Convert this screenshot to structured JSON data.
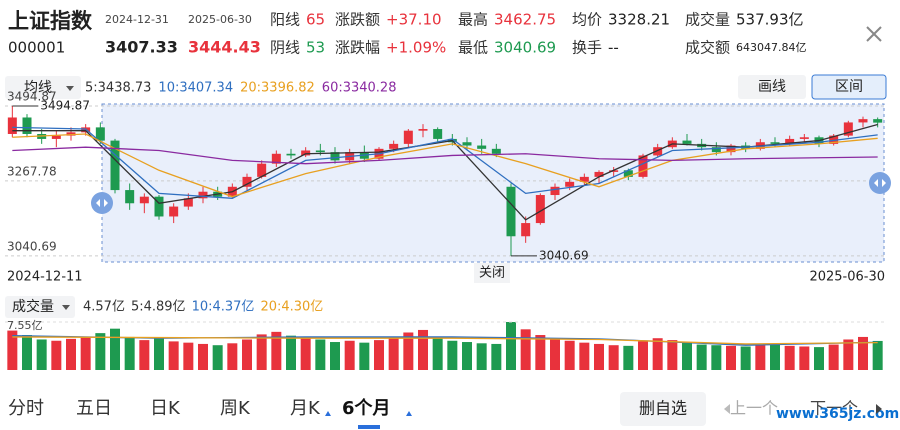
{
  "header": {
    "name": "上证指数",
    "code": "000001",
    "start_date": "2024-12-31",
    "start_price": "3407.33",
    "end_date": "2025-06-30",
    "end_price": "3444.43",
    "stats": [
      [
        {
          "label": "阳线",
          "value": "65",
          "color": "#e8323c"
        },
        {
          "label": "阴线",
          "value": "53",
          "color": "#1e9a50"
        }
      ],
      [
        {
          "label": "涨跌额",
          "value": "+37.10",
          "color": "#e8323c"
        },
        {
          "label": "涨跌幅",
          "value": "+1.09%",
          "color": "#e8323c"
        }
      ],
      [
        {
          "label": "最高",
          "value": "3462.75",
          "color": "#e8323c"
        },
        {
          "label": "最低",
          "value": "3040.69",
          "color": "#1e9a50"
        }
      ],
      [
        {
          "label": "均价",
          "value": "3328.21",
          "color": "#222222"
        },
        {
          "label": "换手",
          "value": "--",
          "color": "#222222"
        }
      ],
      [
        {
          "label": "成交量",
          "value": "537.93亿",
          "color": "#222222"
        },
        {
          "label": "成交额",
          "value": "643047.84亿",
          "color": "#222222"
        }
      ]
    ]
  },
  "toolbar": {
    "ma_button": "均线",
    "ma_legend": [
      {
        "text": "5:3438.73",
        "color": "#333333"
      },
      {
        "text": "10:3407.34",
        "color": "#2f6fc0"
      },
      {
        "text": "20:3396.82",
        "color": "#e8a020"
      },
      {
        "text": "60:3340.28",
        "color": "#8a2aa0"
      }
    ],
    "draw_button": "画线",
    "range_button": "区间"
  },
  "chart_data": [
    {
      "type": "candlestick",
      "up_color": "#e8323c",
      "down_color": "#1e9a50",
      "x_start_label": "2024-12-11",
      "x_end_label": "2025-06-30",
      "close_button": "关闭",
      "ylim": [
        3022,
        3513
      ],
      "yticks": [
        3494.87,
        3267.78,
        3040.69
      ],
      "annotations": [
        {
          "label": "3494.87",
          "value": 3494.87,
          "x": 0
        },
        {
          "label": "3040.69",
          "value": 3040.69,
          "x": 34
        }
      ],
      "ohlc": [
        [
          3410,
          3495,
          3400,
          3460
        ],
        [
          3460,
          3470,
          3400,
          3410
        ],
        [
          3410,
          3425,
          3380,
          3395
        ],
        [
          3395,
          3420,
          3370,
          3405
        ],
        [
          3405,
          3430,
          3390,
          3415
        ],
        [
          3415,
          3440,
          3405,
          3430
        ],
        [
          3430,
          3445,
          3380,
          3390
        ],
        [
          3390,
          3395,
          3230,
          3240
        ],
        [
          3240,
          3260,
          3180,
          3200
        ],
        [
          3200,
          3230,
          3170,
          3220
        ],
        [
          3220,
          3225,
          3150,
          3160
        ],
        [
          3160,
          3200,
          3140,
          3190
        ],
        [
          3190,
          3230,
          3180,
          3215
        ],
        [
          3215,
          3250,
          3200,
          3235
        ],
        [
          3235,
          3250,
          3210,
          3220
        ],
        [
          3220,
          3260,
          3215,
          3250
        ],
        [
          3250,
          3290,
          3240,
          3280
        ],
        [
          3280,
          3330,
          3275,
          3320
        ],
        [
          3320,
          3360,
          3310,
          3350
        ],
        [
          3350,
          3365,
          3335,
          3345
        ],
        [
          3345,
          3370,
          3340,
          3360
        ],
        [
          3360,
          3380,
          3345,
          3355
        ],
        [
          3355,
          3370,
          3320,
          3330
        ],
        [
          3330,
          3365,
          3320,
          3355
        ],
        [
          3355,
          3375,
          3325,
          3335
        ],
        [
          3335,
          3370,
          3330,
          3365
        ],
        [
          3365,
          3390,
          3355,
          3380
        ],
        [
          3380,
          3425,
          3370,
          3420
        ],
        [
          3420,
          3440,
          3400,
          3425
        ],
        [
          3425,
          3430,
          3385,
          3395
        ],
        [
          3395,
          3410,
          3375,
          3385
        ],
        [
          3385,
          3400,
          3360,
          3375
        ],
        [
          3375,
          3395,
          3350,
          3365
        ],
        [
          3365,
          3380,
          3340,
          3350
        ],
        [
          3250,
          3260,
          3040.69,
          3100
        ],
        [
          3100,
          3160,
          3080,
          3140
        ],
        [
          3140,
          3230,
          3135,
          3225
        ],
        [
          3225,
          3260,
          3210,
          3250
        ],
        [
          3250,
          3275,
          3240,
          3265
        ],
        [
          3265,
          3290,
          3255,
          3280
        ],
        [
          3280,
          3300,
          3260,
          3295
        ],
        [
          3295,
          3310,
          3280,
          3300
        ],
        [
          3300,
          3305,
          3270,
          3280
        ],
        [
          3280,
          3350,
          3275,
          3345
        ],
        [
          3345,
          3380,
          3340,
          3370
        ],
        [
          3370,
          3400,
          3365,
          3390
        ],
        [
          3390,
          3410,
          3375,
          3380
        ],
        [
          3380,
          3395,
          3360,
          3370
        ],
        [
          3370,
          3385,
          3345,
          3355
        ],
        [
          3355,
          3380,
          3345,
          3375
        ],
        [
          3375,
          3385,
          3355,
          3365
        ],
        [
          3365,
          3395,
          3360,
          3385
        ],
        [
          3385,
          3400,
          3370,
          3380
        ],
        [
          3380,
          3405,
          3375,
          3395
        ],
        [
          3395,
          3410,
          3385,
          3400
        ],
        [
          3400,
          3405,
          3370,
          3380
        ],
        [
          3380,
          3410,
          3375,
          3405
        ],
        [
          3405,
          3450,
          3400,
          3445
        ],
        [
          3445,
          3462.75,
          3430,
          3455
        ],
        [
          3455,
          3460,
          3430,
          3444.43
        ]
      ],
      "lines": [
        {
          "color": "#333333",
          "x": [
            0,
            5,
            10,
            15,
            20,
            25,
            30,
            35,
            40,
            45,
            50,
            55,
            59
          ],
          "values": [
            3420,
            3420,
            3200,
            3235,
            3350,
            3355,
            3390,
            3150,
            3280,
            3380,
            3370,
            3390,
            3438.73
          ]
        },
        {
          "color": "#2f6fc0",
          "x": [
            0,
            5,
            10,
            15,
            20,
            25,
            30,
            35,
            40,
            45,
            50,
            55,
            59
          ],
          "values": [
            3430,
            3425,
            3230,
            3215,
            3330,
            3350,
            3395,
            3230,
            3260,
            3360,
            3370,
            3385,
            3407.34
          ]
        },
        {
          "color": "#e8a020",
          "x": [
            0,
            5,
            10,
            15,
            20,
            25,
            30,
            35,
            40,
            45,
            50,
            55,
            59
          ],
          "values": [
            3400,
            3410,
            3300,
            3220,
            3290,
            3340,
            3380,
            3320,
            3250,
            3330,
            3365,
            3380,
            3396.82
          ]
        },
        {
          "color": "#8a2aa0",
          "x": [
            0,
            5,
            10,
            15,
            20,
            25,
            30,
            35,
            40,
            45,
            50,
            55,
            59
          ],
          "values": [
            3360,
            3370,
            3360,
            3330,
            3320,
            3330,
            3345,
            3350,
            3335,
            3330,
            3335,
            3338,
            3340.28
          ]
        }
      ]
    },
    {
      "type": "bar",
      "button": "成交量",
      "legend": [
        {
          "text": "4.57亿",
          "color": "#333333"
        },
        {
          "text": "5:4.89亿",
          "color": "#333333"
        },
        {
          "text": "10:4.37亿",
          "color": "#2f6fc0"
        },
        {
          "text": "20:4.30亿",
          "color": "#e8a020"
        }
      ],
      "ylim": [
        0,
        7.55
      ],
      "yticks": [
        {
          "value": 7.55,
          "label": "7.55亿"
        }
      ],
      "values": [
        6.2,
        5.5,
        4.8,
        4.6,
        4.9,
        5.1,
        5.8,
        6.5,
        5.2,
        4.7,
        5.0,
        4.5,
        4.3,
        4.1,
        3.9,
        4.2,
        4.8,
        5.6,
        6.0,
        5.4,
        5.0,
        4.8,
        4.4,
        4.6,
        4.3,
        4.7,
        5.2,
        5.9,
        6.3,
        5.1,
        4.6,
        4.4,
        4.2,
        4.1,
        7.55,
        6.4,
        5.5,
        5.0,
        4.6,
        4.3,
        4.1,
        3.9,
        3.8,
        4.5,
        5.0,
        4.7,
        4.3,
        4.0,
        3.9,
        3.8,
        3.7,
        3.9,
        4.0,
        3.8,
        3.7,
        3.6,
        4.0,
        4.8,
        5.2,
        4.57
      ],
      "lines": [
        {
          "color": "#2f6fc0",
          "x": [
            0,
            10,
            20,
            30,
            40,
            50,
            59
          ],
          "values": [
            5.4,
            5.0,
            5.2,
            5.2,
            4.9,
            3.9,
            4.37
          ]
        },
        {
          "color": "#e8a020",
          "x": [
            0,
            10,
            20,
            30,
            40,
            50,
            59
          ],
          "values": [
            5.2,
            5.1,
            5.0,
            5.0,
            4.8,
            4.1,
            4.3
          ]
        }
      ]
    }
  ],
  "tabs": [
    "分时",
    "五日",
    "日K",
    "周K",
    "月K",
    "6个月"
  ],
  "active_tab": 5,
  "actions": {
    "delete": "删自选",
    "prev": "上一个",
    "next": "下一个"
  },
  "watermark": "www.365jz.com"
}
